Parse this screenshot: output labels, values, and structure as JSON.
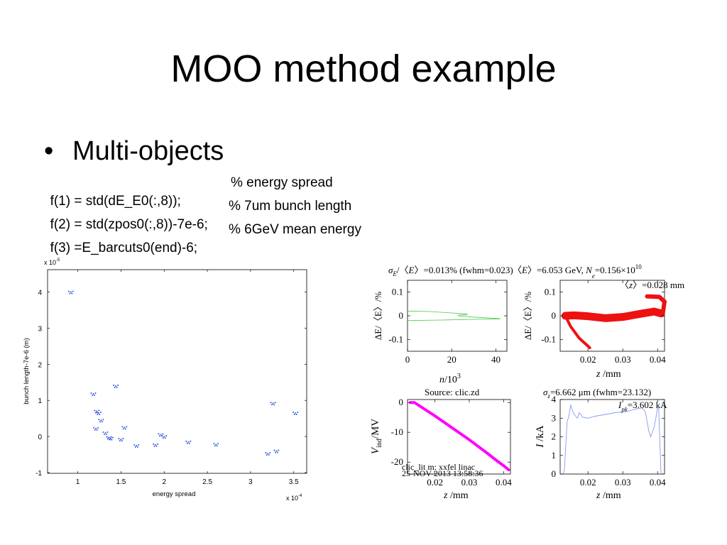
{
  "slide": {
    "title": "MOO method example",
    "bullet": "Multi-objects",
    "bullet_glyph": "•",
    "code": [
      {
        "expr": "f(1) = std(dE_E0(:,8));",
        "comment": "% energy spread"
      },
      {
        "expr": "f(2) = std(zpos0(:,8))-7e-6;",
        "comment": "% 7um bunch length"
      },
      {
        "expr": "f(3) =E_barcuts0(end)-6;",
        "comment": "% 6GeV mean energy"
      }
    ]
  },
  "chart_data": [
    {
      "type": "scatter",
      "title": "",
      "xlabel": "energy spread",
      "ylabel": "bunch length-7e-6 (m)",
      "x_exponent": "x 10",
      "x_exponent_power": "-4",
      "y_exponent": "x 10",
      "y_exponent_power": "-5",
      "xlim": [
        0.65,
        3.65
      ],
      "ylim": [
        -1.02,
        4.62
      ],
      "x_ticks": [
        "1",
        "1.5",
        "2",
        "2.5",
        "3",
        "3.5"
      ],
      "x_tick_values": [
        1,
        1.5,
        2,
        2.5,
        3,
        3.5
      ],
      "y_ticks": [
        "-1",
        "0",
        "1",
        "2",
        "3",
        "4"
      ],
      "y_tick_values": [
        -1,
        0,
        1,
        2,
        3,
        4
      ],
      "marker_color": "#3355dd",
      "points": [
        {
          "x": 0.92,
          "y": 4.0
        },
        {
          "x": 1.18,
          "y": 1.18
        },
        {
          "x": 1.22,
          "y": 0.7
        },
        {
          "x": 1.24,
          "y": 0.65
        },
        {
          "x": 1.27,
          "y": 0.45
        },
        {
          "x": 1.21,
          "y": 0.22
        },
        {
          "x": 1.32,
          "y": 0.1
        },
        {
          "x": 1.36,
          "y": -0.03
        },
        {
          "x": 1.38,
          "y": -0.05
        },
        {
          "x": 1.44,
          "y": 1.4
        },
        {
          "x": 1.5,
          "y": -0.08
        },
        {
          "x": 1.54,
          "y": 0.25
        },
        {
          "x": 1.68,
          "y": -0.25
        },
        {
          "x": 1.9,
          "y": -0.23
        },
        {
          "x": 1.96,
          "y": 0.05
        },
        {
          "x": 2.0,
          "y": 0.0
        },
        {
          "x": 2.28,
          "y": -0.15
        },
        {
          "x": 2.6,
          "y": -0.22
        },
        {
          "x": 3.2,
          "y": -0.47
        },
        {
          "x": 3.26,
          "y": 0.92
        },
        {
          "x": 3.3,
          "y": -0.4
        },
        {
          "x": 3.52,
          "y": 0.65
        }
      ]
    },
    {
      "type": "line",
      "title_parts": [
        "σ",
        "E",
        "/〈",
        "E",
        "〉=0.013% (fwhm=0.023)"
      ],
      "xlabel_parts": [
        "n",
        "/10",
        "3"
      ],
      "ylabel": "ΔE/〈E〉/%",
      "xlim": [
        0,
        45
      ],
      "ylim": [
        -0.15,
        0.15
      ],
      "x_ticks": [
        "0",
        "20",
        "40"
      ],
      "x_tick_values": [
        0,
        20,
        40
      ],
      "y_ticks": [
        "0.1",
        "0",
        "-0.1"
      ],
      "y_tick_values": [
        0.1,
        0,
        -0.1
      ],
      "color": "#44cc44",
      "series": [
        {
          "x": [
            0,
            10,
            20,
            27,
            27,
            23,
            23,
            29,
            42
          ],
          "y": [
            0.02,
            0.018,
            0.012,
            0.008,
            0.005,
            0.003,
            0.0,
            -0.005,
            -0.012
          ]
        },
        {
          "x": [
            0,
            15,
            30,
            42
          ],
          "y": [
            -0.02,
            -0.018,
            -0.015,
            -0.013
          ]
        }
      ]
    },
    {
      "type": "scatter",
      "title_parts": [
        "〈",
        "E",
        "〉=6.053 GeV, ",
        "N",
        "e",
        "=0.156×10",
        "10"
      ],
      "annotation_parts": [
        "〈",
        "z",
        "〉=0.028 mm"
      ],
      "xlabel_parts": [
        "z",
        " /mm"
      ],
      "ylabel": "ΔE/〈E〉/%",
      "xlim": [
        0.012,
        0.042
      ],
      "ylim": [
        -0.15,
        0.15
      ],
      "x_ticks": [
        "0.02",
        "0.03",
        "0.04"
      ],
      "x_tick_values": [
        0.02,
        0.03,
        0.04
      ],
      "y_ticks": [
        "0.1",
        "0",
        "-0.1"
      ],
      "y_tick_values": [
        0.1,
        0,
        -0.1
      ],
      "color": "#ee1111",
      "band_center": {
        "z": [
          0.0135,
          0.016,
          0.02,
          0.025,
          0.03,
          0.035,
          0.039,
          0.041
        ],
        "dE": [
          0.0,
          0.002,
          -0.002,
          -0.01,
          -0.005,
          0.008,
          0.018,
          0.01
        ]
      },
      "tail_center": {
        "z": [
          0.0135,
          0.015,
          0.0175,
          0.0205
        ],
        "dE": [
          0.0,
          -0.045,
          -0.095,
          -0.135
        ]
      },
      "hook_center": {
        "z": [
          0.0415,
          0.042,
          0.0405,
          0.037
        ],
        "dE": [
          0.01,
          0.06,
          0.08,
          0.082
        ]
      }
    },
    {
      "type": "line",
      "title": "Source: clic.zd",
      "xlabel_parts": [
        "z",
        " /mm"
      ],
      "ylabel_parts": [
        "V",
        "ind",
        "/MV"
      ],
      "footer_1": "clic_lit m: xxfel linac",
      "footer_2": "25-NOV-2013 13:58:36",
      "xlim": [
        0.012,
        0.042
      ],
      "ylim": [
        -24,
        1
      ],
      "x_ticks": [
        "0.02",
        "0.03",
        "0.04"
      ],
      "x_tick_values": [
        0.02,
        0.03,
        0.04
      ],
      "y_ticks": [
        "0",
        "-10",
        "-20"
      ],
      "y_tick_values": [
        0,
        -10,
        -20
      ],
      "color": "#ff00ff",
      "series": [
        {
          "z": [
            0.0128,
            0.014,
            0.016,
            0.02,
            0.025,
            0.03,
            0.035,
            0.038,
            0.04,
            0.0415
          ],
          "V": [
            0,
            0,
            -1.5,
            -4.5,
            -8.5,
            -12.5,
            -16.8,
            -19.5,
            -21.2,
            -22.6
          ]
        }
      ]
    },
    {
      "type": "line",
      "title_parts": [
        "σ",
        "z",
        "=6.662 μm (fwhm=23.132)"
      ],
      "annotation_parts": [
        "I",
        "pk",
        "=3.602 kA"
      ],
      "xlabel_parts": [
        "z",
        " /mm"
      ],
      "ylabel_parts": [
        "I",
        " /kA"
      ],
      "xlim": [
        0.012,
        0.042
      ],
      "ylim": [
        0,
        4
      ],
      "x_ticks": [
        "0.02",
        "0.03",
        "0.04"
      ],
      "x_tick_values": [
        0.02,
        0.03,
        0.04
      ],
      "y_ticks": [
        "4",
        "3",
        "2",
        "1",
        "0"
      ],
      "y_tick_values": [
        4,
        3,
        2,
        1,
        0
      ],
      "color": "#8899ee",
      "series": [
        {
          "z": [
            0.0128,
            0.0132,
            0.0136,
            0.014,
            0.0145,
            0.015,
            0.016,
            0.017,
            0.0175,
            0.0185,
            0.02,
            0.022,
            0.025,
            0.028,
            0.031,
            0.034,
            0.0355,
            0.0365,
            0.037,
            0.0375,
            0.038,
            0.039,
            0.0395,
            0.04,
            0.0403,
            0.0406,
            0.041
          ],
          "I": [
            0,
            0.2,
            1.5,
            2.8,
            3.1,
            3.7,
            3.2,
            3.0,
            3.3,
            3.05,
            3.0,
            3.1,
            3.2,
            3.3,
            3.35,
            3.5,
            3.55,
            3.35,
            2.8,
            2.3,
            2.0,
            2.5,
            3.0,
            3.55,
            3.6,
            2.0,
            0
          ]
        }
      ]
    }
  ]
}
